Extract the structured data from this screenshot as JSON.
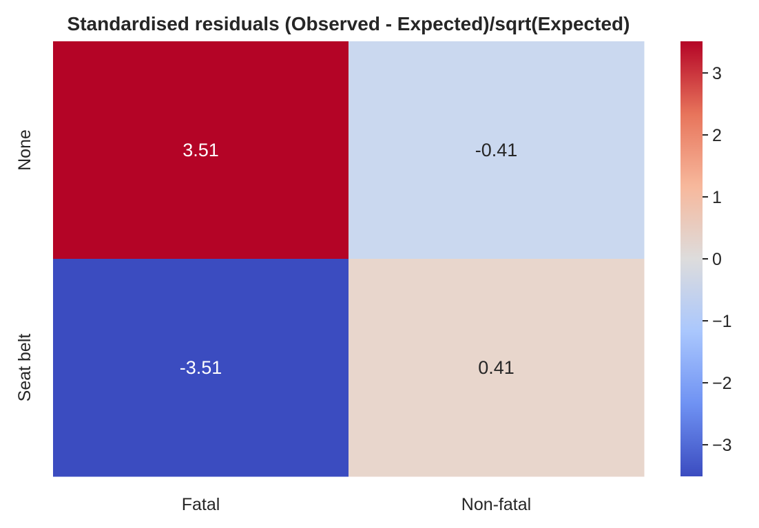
{
  "chart_data": {
    "type": "heatmap",
    "title": "Standardised residuals (Observed - Expected)/sqrt(Expected)",
    "xlabel": "",
    "ylabel": "",
    "x_categories": [
      "Fatal",
      "Non-fatal"
    ],
    "y_categories": [
      "None",
      "Seat belt"
    ],
    "values": [
      [
        3.51,
        -0.41
      ],
      [
        -3.51,
        0.41
      ]
    ],
    "cell_labels": [
      [
        "3.51",
        "-0.41"
      ],
      [
        "-3.51",
        "0.41"
      ]
    ],
    "colormap": "coolwarm",
    "vmin": -3.51,
    "vmax": 3.51,
    "colorbar_ticks": [
      -3,
      -2,
      -1,
      0,
      1,
      2,
      3
    ],
    "colorbar_tick_labels": [
      "−3",
      "−2",
      "−1",
      "0",
      "1",
      "2",
      "3"
    ],
    "colors": {
      "cells": [
        [
          "#b40426",
          "#cad8ef"
        ],
        [
          "#3b4cc0",
          "#e8d6cc"
        ]
      ],
      "colorbar_stops": [
        "#3b4cc0",
        "#6f92f3",
        "#aac7fd",
        "#dddcdc",
        "#f7b89c",
        "#e7745b",
        "#b40426"
      ],
      "text_light": "#ffffff",
      "text_dark": "#262626"
    }
  }
}
